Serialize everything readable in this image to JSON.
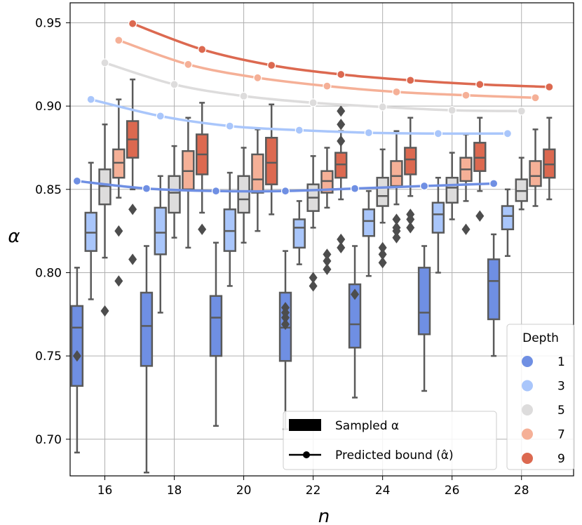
{
  "chart_data": {
    "type": "box",
    "xlabel": "n",
    "ylabel": "α",
    "x_ticks": [
      "16",
      "18",
      "20",
      "22",
      "24",
      "26",
      "28"
    ],
    "y_ticks": [
      "0.70",
      "0.75",
      "0.80",
      "0.85",
      "0.90",
      "0.95"
    ],
    "xlim": [
      15.0,
      29.5
    ],
    "ylim": [
      0.678,
      0.962
    ],
    "grid": true,
    "categories": [
      16,
      18,
      20,
      22,
      24,
      26,
      28
    ],
    "depth_offsets": [
      -0.8,
      -0.4,
      0.0,
      0.4,
      0.8
    ],
    "series": [
      {
        "name": "1",
        "color": "#6f8fe3",
        "boxes": [
          {
            "n": 16,
            "whislo": 0.692,
            "q1": 0.732,
            "med": 0.767,
            "q3": 0.78,
            "whishi": 0.803,
            "fliers": [
              0.75
            ]
          },
          {
            "n": 18,
            "whislo": 0.68,
            "q1": 0.744,
            "med": 0.768,
            "q3": 0.788,
            "whishi": 0.816,
            "fliers": []
          },
          {
            "n": 20,
            "whislo": 0.708,
            "q1": 0.75,
            "med": 0.773,
            "q3": 0.786,
            "whishi": 0.818,
            "fliers": []
          },
          {
            "n": 22,
            "whislo": 0.706,
            "q1": 0.747,
            "med": 0.767,
            "q3": 0.788,
            "whishi": 0.813,
            "fliers": [
              0.769,
              0.773,
              0.776,
              0.779
            ]
          },
          {
            "n": 24,
            "whislo": 0.725,
            "q1": 0.755,
            "med": 0.769,
            "q3": 0.793,
            "whishi": 0.816,
            "fliers": [
              0.787
            ]
          },
          {
            "n": 26,
            "whislo": 0.729,
            "q1": 0.763,
            "med": 0.776,
            "q3": 0.803,
            "whishi": 0.816,
            "fliers": []
          },
          {
            "n": 28,
            "whislo": 0.75,
            "q1": 0.772,
            "med": 0.795,
            "q3": 0.808,
            "whishi": 0.823,
            "fliers": []
          }
        ],
        "bound": [
          0.855,
          0.8505,
          0.849,
          0.849,
          0.8505,
          0.852,
          0.8535
        ]
      },
      {
        "name": "3",
        "color": "#a9c6fb",
        "boxes": [
          {
            "n": 16,
            "whislo": 0.784,
            "q1": 0.813,
            "med": 0.824,
            "q3": 0.836,
            "whishi": 0.866,
            "fliers": []
          },
          {
            "n": 18,
            "whislo": 0.776,
            "q1": 0.811,
            "med": 0.824,
            "q3": 0.839,
            "whishi": 0.858,
            "fliers": []
          },
          {
            "n": 20,
            "whislo": 0.792,
            "q1": 0.813,
            "med": 0.825,
            "q3": 0.838,
            "whishi": 0.86,
            "fliers": []
          },
          {
            "n": 22,
            "whislo": 0.805,
            "q1": 0.815,
            "med": 0.827,
            "q3": 0.832,
            "whishi": 0.843,
            "fliers": []
          },
          {
            "n": 24,
            "whislo": 0.798,
            "q1": 0.822,
            "med": 0.831,
            "q3": 0.838,
            "whishi": 0.849,
            "fliers": []
          },
          {
            "n": 26,
            "whislo": 0.8,
            "q1": 0.824,
            "med": 0.835,
            "q3": 0.842,
            "whishi": 0.857,
            "fliers": []
          },
          {
            "n": 28,
            "whislo": 0.81,
            "q1": 0.826,
            "med": 0.834,
            "q3": 0.84,
            "whishi": 0.85,
            "fliers": []
          }
        ],
        "bound": [
          0.904,
          0.894,
          0.888,
          0.8855,
          0.884,
          0.8835,
          0.8835
        ]
      },
      {
        "name": "5",
        "color": "#dddcdc",
        "boxes": [
          {
            "n": 16,
            "whislo": 0.809,
            "q1": 0.841,
            "med": 0.852,
            "q3": 0.862,
            "whishi": 0.889,
            "fliers": [
              0.777
            ]
          },
          {
            "n": 18,
            "whislo": 0.821,
            "q1": 0.836,
            "med": 0.848,
            "q3": 0.858,
            "whishi": 0.876,
            "fliers": []
          },
          {
            "n": 20,
            "whislo": 0.818,
            "q1": 0.836,
            "med": 0.844,
            "q3": 0.858,
            "whishi": 0.875,
            "fliers": []
          },
          {
            "n": 22,
            "whislo": 0.827,
            "q1": 0.837,
            "med": 0.845,
            "q3": 0.853,
            "whishi": 0.87,
            "fliers": [
              0.792,
              0.797
            ]
          },
          {
            "n": 24,
            "whislo": 0.83,
            "q1": 0.84,
            "med": 0.846,
            "q3": 0.857,
            "whishi": 0.874,
            "fliers": [
              0.806,
              0.811,
              0.815
            ]
          },
          {
            "n": 26,
            "whislo": 0.832,
            "q1": 0.842,
            "med": 0.851,
            "q3": 0.857,
            "whishi": 0.872,
            "fliers": []
          },
          {
            "n": 28,
            "whislo": 0.838,
            "q1": 0.843,
            "med": 0.849,
            "q3": 0.856,
            "whishi": 0.869,
            "fliers": []
          }
        ],
        "bound": [
          0.926,
          0.913,
          0.906,
          0.902,
          0.8995,
          0.8975,
          0.897
        ]
      },
      {
        "name": "7",
        "color": "#f5b097",
        "boxes": [
          {
            "n": 16,
            "whislo": 0.845,
            "q1": 0.857,
            "med": 0.866,
            "q3": 0.874,
            "whishi": 0.904,
            "fliers": [
              0.795,
              0.825
            ]
          },
          {
            "n": 18,
            "whislo": 0.815,
            "q1": 0.85,
            "med": 0.861,
            "q3": 0.873,
            "whishi": 0.893,
            "fliers": []
          },
          {
            "n": 20,
            "whislo": 0.825,
            "q1": 0.848,
            "med": 0.856,
            "q3": 0.871,
            "whishi": 0.886,
            "fliers": []
          },
          {
            "n": 22,
            "whislo": 0.839,
            "q1": 0.848,
            "med": 0.855,
            "q3": 0.861,
            "whishi": 0.875,
            "fliers": [
              0.802,
              0.807,
              0.811
            ]
          },
          {
            "n": 24,
            "whislo": 0.841,
            "q1": 0.852,
            "med": 0.858,
            "q3": 0.867,
            "whishi": 0.885,
            "fliers": [
              0.821,
              0.825,
              0.827,
              0.832
            ]
          },
          {
            "n": 26,
            "whislo": 0.843,
            "q1": 0.855,
            "med": 0.862,
            "q3": 0.869,
            "whishi": 0.883,
            "fliers": [
              0.826
            ]
          },
          {
            "n": 28,
            "whislo": 0.84,
            "q1": 0.852,
            "med": 0.858,
            "q3": 0.867,
            "whishi": 0.886,
            "fliers": []
          }
        ],
        "bound": [
          0.9395,
          0.925,
          0.917,
          0.912,
          0.9085,
          0.9065,
          0.905
        ]
      },
      {
        "name": "9",
        "color": "#dc6950",
        "boxes": [
          {
            "n": 16,
            "whislo": 0.85,
            "q1": 0.869,
            "med": 0.88,
            "q3": 0.891,
            "whishi": 0.916,
            "fliers": [
              0.808,
              0.838
            ]
          },
          {
            "n": 18,
            "whislo": 0.836,
            "q1": 0.859,
            "med": 0.871,
            "q3": 0.883,
            "whishi": 0.902,
            "fliers": [
              0.826
            ]
          },
          {
            "n": 20,
            "whislo": 0.835,
            "q1": 0.853,
            "med": 0.866,
            "q3": 0.881,
            "whishi": 0.901,
            "fliers": []
          },
          {
            "n": 22,
            "whislo": 0.844,
            "q1": 0.857,
            "med": 0.865,
            "q3": 0.872,
            "whishi": 0.885,
            "fliers": [
              0.815,
              0.82,
              0.879,
              0.889,
              0.897
            ]
          },
          {
            "n": 24,
            "whislo": 0.846,
            "q1": 0.859,
            "med": 0.868,
            "q3": 0.875,
            "whishi": 0.893,
            "fliers": [
              0.827,
              0.832,
              0.835
            ]
          },
          {
            "n": 26,
            "whislo": 0.849,
            "q1": 0.861,
            "med": 0.869,
            "q3": 0.878,
            "whishi": 0.893,
            "fliers": [
              0.834
            ]
          },
          {
            "n": 28,
            "whislo": 0.844,
            "q1": 0.857,
            "med": 0.865,
            "q3": 0.874,
            "whishi": 0.893,
            "fliers": []
          }
        ],
        "bound": [
          0.9495,
          0.934,
          0.9245,
          0.919,
          0.9155,
          0.913,
          0.9115
        ]
      }
    ],
    "legend_style": {
      "title": "Depth",
      "items": [
        "1",
        "3",
        "5",
        "7",
        "9"
      ],
      "position": "lower-right"
    },
    "legend_marks": {
      "sampled": "Sampled α",
      "predicted": "Predicted bound (α̂)",
      "position": "bottom-center"
    }
  }
}
